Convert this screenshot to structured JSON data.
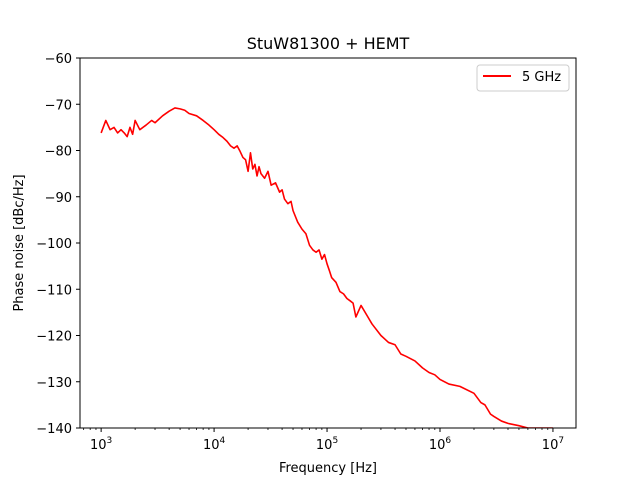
{
  "chart_data": {
    "type": "line",
    "title": "StuW81300 + HEMT",
    "xlabel": "Frequency [Hz]",
    "ylabel": "Phase noise [dBc/Hz]",
    "xscale": "log",
    "xlim": [
      650,
      16000000
    ],
    "ylim": [
      -140,
      -60
    ],
    "x_tick_exponents": [
      3,
      4,
      5,
      6,
      7
    ],
    "y_ticks": [
      -60,
      -70,
      -80,
      -90,
      -100,
      -110,
      -120,
      -130,
      -140
    ],
    "grid": false,
    "legend": "top-right",
    "series": [
      {
        "name": "5 GHz",
        "color": "#ff0000",
        "x": [
          1000,
          1100,
          1200,
          1300,
          1400,
          1500,
          1600,
          1700,
          1800,
          1900,
          2000,
          2200,
          2500,
          2800,
          3000,
          3500,
          4000,
          4500,
          5000,
          5500,
          6000,
          7000,
          8000,
          9000,
          10000,
          11000,
          12000,
          13000,
          14000,
          15000,
          16000,
          17000,
          18000,
          19000,
          20000,
          21000,
          22000,
          23000,
          24000,
          25000,
          26000,
          28000,
          30000,
          32000,
          35000,
          38000,
          40000,
          42000,
          45000,
          48000,
          50000,
          55000,
          60000,
          65000,
          70000,
          75000,
          80000,
          85000,
          90000,
          95000,
          100000,
          105000,
          110000,
          120000,
          130000,
          140000,
          150000,
          160000,
          170000,
          180000,
          200000,
          230000,
          250000,
          300000,
          350000,
          400000,
          450000,
          500000,
          600000,
          700000,
          800000,
          900000,
          1000000,
          1200000,
          1500000,
          2000000,
          2300000,
          2500000,
          2800000,
          3000000,
          3500000,
          4000000,
          5000000,
          6000000,
          7000000,
          8000000,
          9000000,
          10000000
        ],
        "y": [
          -76.2,
          -73.5,
          -75.5,
          -75.0,
          -76.2,
          -75.5,
          -76.2,
          -77.0,
          -75.0,
          -76.5,
          -73.5,
          -75.5,
          -74.5,
          -73.5,
          -74.0,
          -72.5,
          -71.5,
          -70.8,
          -71.0,
          -71.3,
          -72.0,
          -72.5,
          -73.5,
          -74.5,
          -75.5,
          -76.5,
          -77.2,
          -78.0,
          -79.0,
          -79.5,
          -79.0,
          -80.2,
          -81.5,
          -82.0,
          -84.5,
          -80.5,
          -84.0,
          -83.0,
          -85.5,
          -83.5,
          -85.0,
          -86.0,
          -84.5,
          -87.5,
          -87.0,
          -89.0,
          -88.5,
          -90.5,
          -91.5,
          -91.0,
          -93.0,
          -95.5,
          -97.0,
          -98.0,
          -100.5,
          -101.5,
          -102.0,
          -101.5,
          -103.5,
          -102.5,
          -104.5,
          -106.0,
          -107.5,
          -108.5,
          -110.5,
          -111.0,
          -112.0,
          -112.5,
          -113.0,
          -116.0,
          -113.5,
          -116.0,
          -117.5,
          -120.0,
          -121.5,
          -122.0,
          -124.0,
          -124.5,
          -125.5,
          -127.0,
          -128.0,
          -128.5,
          -129.5,
          -130.5,
          -131.0,
          -132.5,
          -134.5,
          -135.0,
          -137.0,
          -137.5,
          -138.5,
          -139.0,
          -139.5,
          -140.0,
          -140.0,
          -140.0,
          -140.0,
          -140.0
        ]
      }
    ]
  }
}
